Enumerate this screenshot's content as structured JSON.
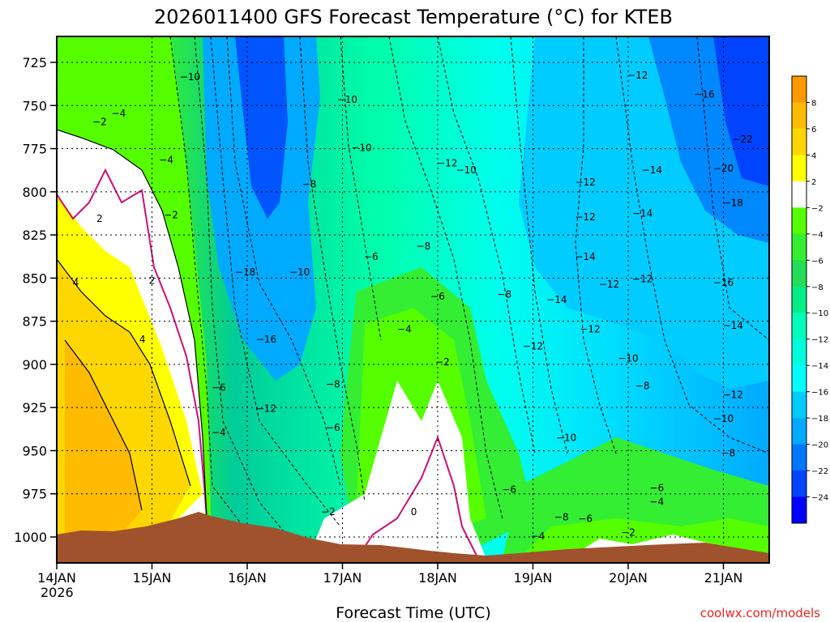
{
  "chart_data": {
    "type": "heatmap",
    "title": "2026011400 GFS Forecast Temperature (°C) for KTEB",
    "xlabel": "Forecast Time (UTC)",
    "ylabel": "",
    "x_ticks": [
      "14JAN",
      "15JAN",
      "16JAN",
      "17JAN",
      "18JAN",
      "19JAN",
      "20JAN",
      "21JAN"
    ],
    "x_year_label": "2026",
    "y_ticks": [
      725,
      750,
      775,
      800,
      825,
      850,
      875,
      900,
      925,
      950,
      975,
      1000
    ],
    "y_axis_inverted": true,
    "colorbar": {
      "labels": [
        "8",
        "6",
        "4",
        "2",
        "-2",
        "-4",
        "-6",
        "-8",
        "-10",
        "-12",
        "-14",
        "-16",
        "-18",
        "-20",
        "-22",
        "-24"
      ],
      "colors": [
        "#ff9900",
        "#ffbb00",
        "#ffd700",
        "#ffff00",
        "#ffffff",
        "#55ff00",
        "#33ee33",
        "#22dd55",
        "#00ee88",
        "#00ffbb",
        "#00ffdd",
        "#00ffff",
        "#00ccff",
        "#00aaff",
        "#0077ff",
        "#0044ff",
        "#0000ff"
      ]
    },
    "contour_labels": [
      {
        "t": 1.4,
        "p": 734,
        "text": "-10"
      },
      {
        "t": 3.05,
        "p": 747,
        "text": "-10"
      },
      {
        "t": 3.2,
        "p": 775,
        "text": "-10"
      },
      {
        "t": 4.3,
        "p": 788,
        "text": "-10"
      },
      {
        "t": 5.6,
        "p": 880,
        "text": "-12"
      },
      {
        "t": 4.1,
        "p": 784,
        "text": "-12"
      },
      {
        "t": 6.1,
        "p": 733,
        "text": "-12"
      },
      {
        "t": 5.55,
        "p": 795,
        "text": "-12"
      },
      {
        "t": 0.45,
        "p": 760,
        "text": "-2"
      },
      {
        "t": 0.65,
        "p": 755,
        "text": "-4"
      },
      {
        "t": 1.15,
        "p": 782,
        "text": "-4"
      },
      {
        "t": 0.45,
        "p": 816,
        "text": "2"
      },
      {
        "t": 1.2,
        "p": 814,
        "text": "-2"
      },
      {
        "t": 1.0,
        "p": 852,
        "text": "2"
      },
      {
        "t": 0.2,
        "p": 853,
        "text": "4"
      },
      {
        "t": 0.9,
        "p": 886,
        "text": "4"
      },
      {
        "t": 2.65,
        "p": 796,
        "text": "-8"
      },
      {
        "t": 3.85,
        "p": 832,
        "text": "-8"
      },
      {
        "t": 3.3,
        "p": 838,
        "text": "-6"
      },
      {
        "t": 4.0,
        "p": 861,
        "text": "-6"
      },
      {
        "t": 3.65,
        "p": 880,
        "text": "-4"
      },
      {
        "t": 4.05,
        "p": 899,
        "text": "-2"
      },
      {
        "t": 1.98,
        "p": 847,
        "text": "-18"
      },
      {
        "t": 2.55,
        "p": 847,
        "text": "-10"
      },
      {
        "t": 2.2,
        "p": 886,
        "text": "-16"
      },
      {
        "t": 2.2,
        "p": 926,
        "text": "-12"
      },
      {
        "t": 1.7,
        "p": 914,
        "text": "-6"
      },
      {
        "t": 1.7,
        "p": 940,
        "text": "-4"
      },
      {
        "t": 2.9,
        "p": 912,
        "text": "-8"
      },
      {
        "t": 2.9,
        "p": 937,
        "text": "-6"
      },
      {
        "t": 2.85,
        "p": 986,
        "text": "-2"
      },
      {
        "t": 3.75,
        "p": 986,
        "text": "0"
      },
      {
        "t": 4.7,
        "p": 860,
        "text": "-8"
      },
      {
        "t": 4.75,
        "p": 973,
        "text": "-6"
      },
      {
        "t": 5.0,
        "p": 890,
        "text": "-12"
      },
      {
        "t": 5.05,
        "p": 1000,
        "text": "-4"
      },
      {
        "t": 5.35,
        "p": 943,
        "text": "-10"
      },
      {
        "t": 5.3,
        "p": 989,
        "text": "-8"
      },
      {
        "t": 5.55,
        "p": 815,
        "text": "-12"
      },
      {
        "t": 5.55,
        "p": 838,
        "text": "-14"
      },
      {
        "t": 5.25,
        "p": 863,
        "text": "-14"
      },
      {
        "t": 5.55,
        "p": 990,
        "text": "-6"
      },
      {
        "t": 5.8,
        "p": 854,
        "text": "-12"
      },
      {
        "t": 6.0,
        "p": 897,
        "text": "-10"
      },
      {
        "t": 6.15,
        "p": 913,
        "text": "-8"
      },
      {
        "t": 6.15,
        "p": 813,
        "text": "-14"
      },
      {
        "t": 6.15,
        "p": 851,
        "text": "-12"
      },
      {
        "t": 6.25,
        "p": 788,
        "text": "-14"
      },
      {
        "t": 6.3,
        "p": 972,
        "text": "-6"
      },
      {
        "t": 6.0,
        "p": 998,
        "text": "-2"
      },
      {
        "t": 6.3,
        "p": 980,
        "text": "-4"
      },
      {
        "t": 6.8,
        "p": 744,
        "text": "-16"
      },
      {
        "t": 7.1,
        "p": 807,
        "text": "-18"
      },
      {
        "t": 7.0,
        "p": 787,
        "text": "-20"
      },
      {
        "t": 7.2,
        "p": 770,
        "text": "-22"
      },
      {
        "t": 7.0,
        "p": 853,
        "text": "-16"
      },
      {
        "t": 7.1,
        "p": 878,
        "text": "-14"
      },
      {
        "t": 7.1,
        "p": 918,
        "text": "-12"
      },
      {
        "t": 7.0,
        "p": 932,
        "text": "-10"
      },
      {
        "t": 7.05,
        "p": 952,
        "text": "-8"
      }
    ]
  },
  "footer": {
    "credit": "coolwx.com/models"
  }
}
